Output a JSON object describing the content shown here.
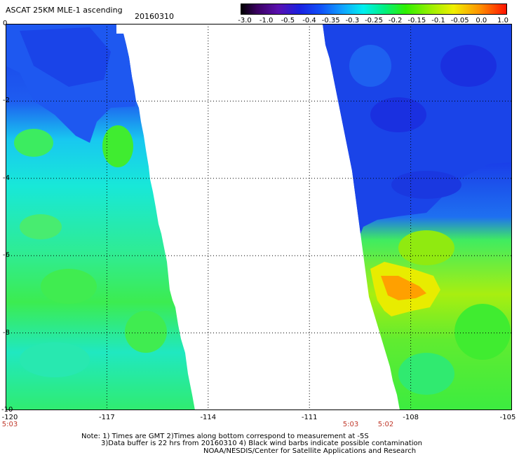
{
  "header": {
    "title": "ASCAT 25KM MLE-1 ascending",
    "date": "20160310"
  },
  "colorbar": {
    "ticks": [
      "-3.0",
      "-1.0",
      "-0.5",
      "-0.4",
      "-0.35",
      "-0.3",
      "-0.25",
      "-0.2",
      "-0.15",
      "-0.1",
      "-0.05",
      "0.0",
      "1.0"
    ],
    "colors": [
      "#1a001f",
      "#5b0f9a",
      "#2323d8",
      "#1050f0",
      "#1aa0ff",
      "#00f4f4",
      "#00f08a",
      "#40f000",
      "#90ea00",
      "#d8ec00",
      "#ffee00",
      "#ff8800",
      "#ff2000"
    ]
  },
  "map": {
    "lon_labels": [
      "-120",
      "-117",
      "-114",
      "-111",
      "-108",
      "-105"
    ],
    "lat_labels": [
      "0",
      "-2",
      "-4",
      "-6",
      "-8",
      "-10"
    ],
    "swath_colors": {
      "deep_blue": "#1a3ce8",
      "blue": "#1e60f0",
      "cyan": "#18e0f0",
      "cyan_green": "#20f0b0",
      "green": "#3cec40",
      "yellow_green": "#a8ee10",
      "yellow": "#f0e800",
      "orange": "#ff9600"
    }
  },
  "times": {
    "left": "5:03",
    "mid_a": "5:03",
    "mid_b": "5:02"
  },
  "notes": {
    "line1": "Note: 1) Times are GMT 2)Times along bottom correspond to measurement at -5S",
    "line2": "3)Data buffer is 22 hrs from 20160310 4) Black wind barbs indicate possible contamination",
    "line3": "NOAA/NESDIS/Center for Satellite Applications and Research"
  }
}
